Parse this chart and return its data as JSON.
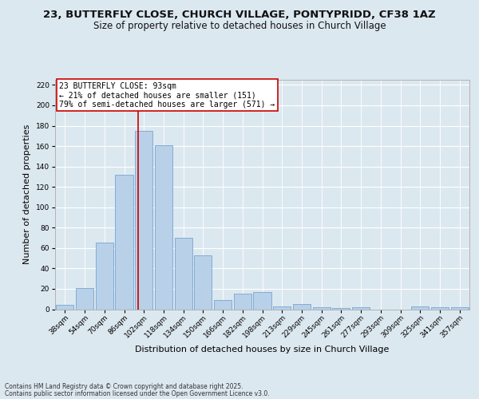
{
  "title1": "23, BUTTERFLY CLOSE, CHURCH VILLAGE, PONTYPRIDD, CF38 1AZ",
  "title2": "Size of property relative to detached houses in Church Village",
  "xlabel": "Distribution of detached houses by size in Church Village",
  "ylabel": "Number of detached properties",
  "footer1": "Contains HM Land Registry data © Crown copyright and database right 2025.",
  "footer2": "Contains public sector information licensed under the Open Government Licence v3.0.",
  "bin_labels": [
    "38sqm",
    "54sqm",
    "70sqm",
    "86sqm",
    "102sqm",
    "118sqm",
    "134sqm",
    "150sqm",
    "166sqm",
    "182sqm",
    "198sqm",
    "213sqm",
    "229sqm",
    "245sqm",
    "261sqm",
    "277sqm",
    "293sqm",
    "309sqm",
    "325sqm",
    "341sqm",
    "357sqm"
  ],
  "bar_values": [
    4,
    21,
    65,
    132,
    175,
    161,
    70,
    53,
    9,
    15,
    17,
    3,
    5,
    2,
    1,
    2,
    0,
    0,
    3,
    2,
    2
  ],
  "bar_color": "#b8d0e8",
  "bar_edge_color": "#6699cc",
  "vline_x": 3.72,
  "vline_color": "#cc0000",
  "annotation_line1": "23 BUTTERFLY CLOSE: 93sqm",
  "annotation_line2": "← 21% of detached houses are smaller (151)",
  "annotation_line3": "79% of semi-detached houses are larger (571) →",
  "annotation_box_color": "#ffffff",
  "annotation_box_edge_color": "#cc0000",
  "ylim": [
    0,
    225
  ],
  "yticks": [
    0,
    20,
    40,
    60,
    80,
    100,
    120,
    140,
    160,
    180,
    200,
    220
  ],
  "fig_bg_color": "#dce8f0",
  "plot_bg_color": "#dce8f0",
  "title_fontsize": 9.5,
  "subtitle_fontsize": 8.5,
  "tick_fontsize": 6.5,
  "ylabel_fontsize": 8,
  "xlabel_fontsize": 8,
  "footer_fontsize": 5.5,
  "annotation_fontsize": 7
}
